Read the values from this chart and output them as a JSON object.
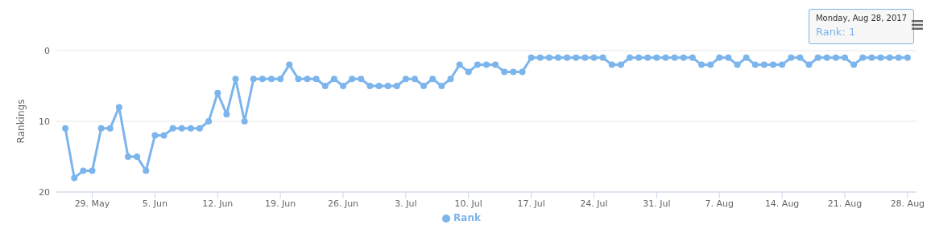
{
  "chart_data": {
    "type": "line",
    "ylabel": "Rankings",
    "x": [
      "2017-05-26",
      "2017-05-27",
      "2017-05-28",
      "2017-05-29",
      "2017-05-30",
      "2017-05-31",
      "2017-06-01",
      "2017-06-02",
      "2017-06-03",
      "2017-06-04",
      "2017-06-05",
      "2017-06-06",
      "2017-06-07",
      "2017-06-08",
      "2017-06-09",
      "2017-06-10",
      "2017-06-11",
      "2017-06-12",
      "2017-06-13",
      "2017-06-14",
      "2017-06-15",
      "2017-06-16",
      "2017-06-17",
      "2017-06-18",
      "2017-06-19",
      "2017-06-20",
      "2017-06-21",
      "2017-06-22",
      "2017-06-23",
      "2017-06-24",
      "2017-06-25",
      "2017-06-26",
      "2017-06-27",
      "2017-06-28",
      "2017-06-29",
      "2017-06-30",
      "2017-07-01",
      "2017-07-02",
      "2017-07-03",
      "2017-07-04",
      "2017-07-05",
      "2017-07-06",
      "2017-07-07",
      "2017-07-08",
      "2017-07-09",
      "2017-07-10",
      "2017-07-11",
      "2017-07-12",
      "2017-07-13",
      "2017-07-14",
      "2017-07-15",
      "2017-07-16",
      "2017-07-17",
      "2017-07-18",
      "2017-07-19",
      "2017-07-20",
      "2017-07-21",
      "2017-07-22",
      "2017-07-23",
      "2017-07-24",
      "2017-07-25",
      "2017-07-26",
      "2017-07-27",
      "2017-07-28",
      "2017-07-29",
      "2017-07-30",
      "2017-07-31",
      "2017-08-01",
      "2017-08-02",
      "2017-08-03",
      "2017-08-04",
      "2017-08-05",
      "2017-08-06",
      "2017-08-07",
      "2017-08-08",
      "2017-08-09",
      "2017-08-10",
      "2017-08-11",
      "2017-08-12",
      "2017-08-13",
      "2017-08-14",
      "2017-08-15",
      "2017-08-16",
      "2017-08-17",
      "2017-08-18",
      "2017-08-19",
      "2017-08-20",
      "2017-08-21",
      "2017-08-22",
      "2017-08-23",
      "2017-08-24",
      "2017-08-25",
      "2017-08-26",
      "2017-08-27",
      "2017-08-28"
    ],
    "series": [
      {
        "name": "Rank",
        "color": "#7cb5ec",
        "values": [
          11,
          18,
          17,
          17,
          11,
          11,
          8,
          15,
          15,
          17,
          12,
          12,
          11,
          11,
          11,
          11,
          10,
          6,
          9,
          4,
          10,
          4,
          4,
          4,
          4,
          2,
          4,
          4,
          4,
          5,
          4,
          5,
          4,
          4,
          5,
          5,
          5,
          5,
          4,
          4,
          5,
          4,
          5,
          4,
          2,
          3,
          2,
          2,
          2,
          3,
          3,
          3,
          1,
          1,
          1,
          1,
          1,
          1,
          1,
          1,
          1,
          2,
          2,
          1,
          1,
          1,
          1,
          1,
          1,
          1,
          1,
          2,
          2,
          1,
          1,
          2,
          1,
          2,
          2,
          2,
          2,
          1,
          1,
          2,
          1,
          1,
          1,
          1,
          2,
          1,
          1,
          1,
          1,
          1,
          1
        ]
      }
    ],
    "xlim": [
      "2017-05-25",
      "2017-08-29"
    ],
    "xticks": [
      {
        "value": "2017-05-29",
        "label": "29. May"
      },
      {
        "value": "2017-06-05",
        "label": "5. Jun"
      },
      {
        "value": "2017-06-12",
        "label": "12. Jun"
      },
      {
        "value": "2017-06-19",
        "label": "19. Jun"
      },
      {
        "value": "2017-06-26",
        "label": "26. Jun"
      },
      {
        "value": "2017-07-03",
        "label": "3. Jul"
      },
      {
        "value": "2017-07-10",
        "label": "10. Jul"
      },
      {
        "value": "2017-07-17",
        "label": "17. Jul"
      },
      {
        "value": "2017-07-24",
        "label": "24. Jul"
      },
      {
        "value": "2017-07-31",
        "label": "31. Jul"
      },
      {
        "value": "2017-08-07",
        "label": "7. Aug"
      },
      {
        "value": "2017-08-14",
        "label": "14. Aug"
      },
      {
        "value": "2017-08-21",
        "label": "21. Aug"
      },
      {
        "value": "2017-08-28",
        "label": "28. Aug"
      }
    ],
    "ylim": [
      20,
      0
    ],
    "yticks": [
      0,
      10,
      20
    ],
    "grid": "y",
    "legend": "bottom",
    "marker": "circle",
    "line_style": "solid",
    "annotations": [
      "Monday, Aug 28, 2017",
      "Rank: 1"
    ]
  }
}
